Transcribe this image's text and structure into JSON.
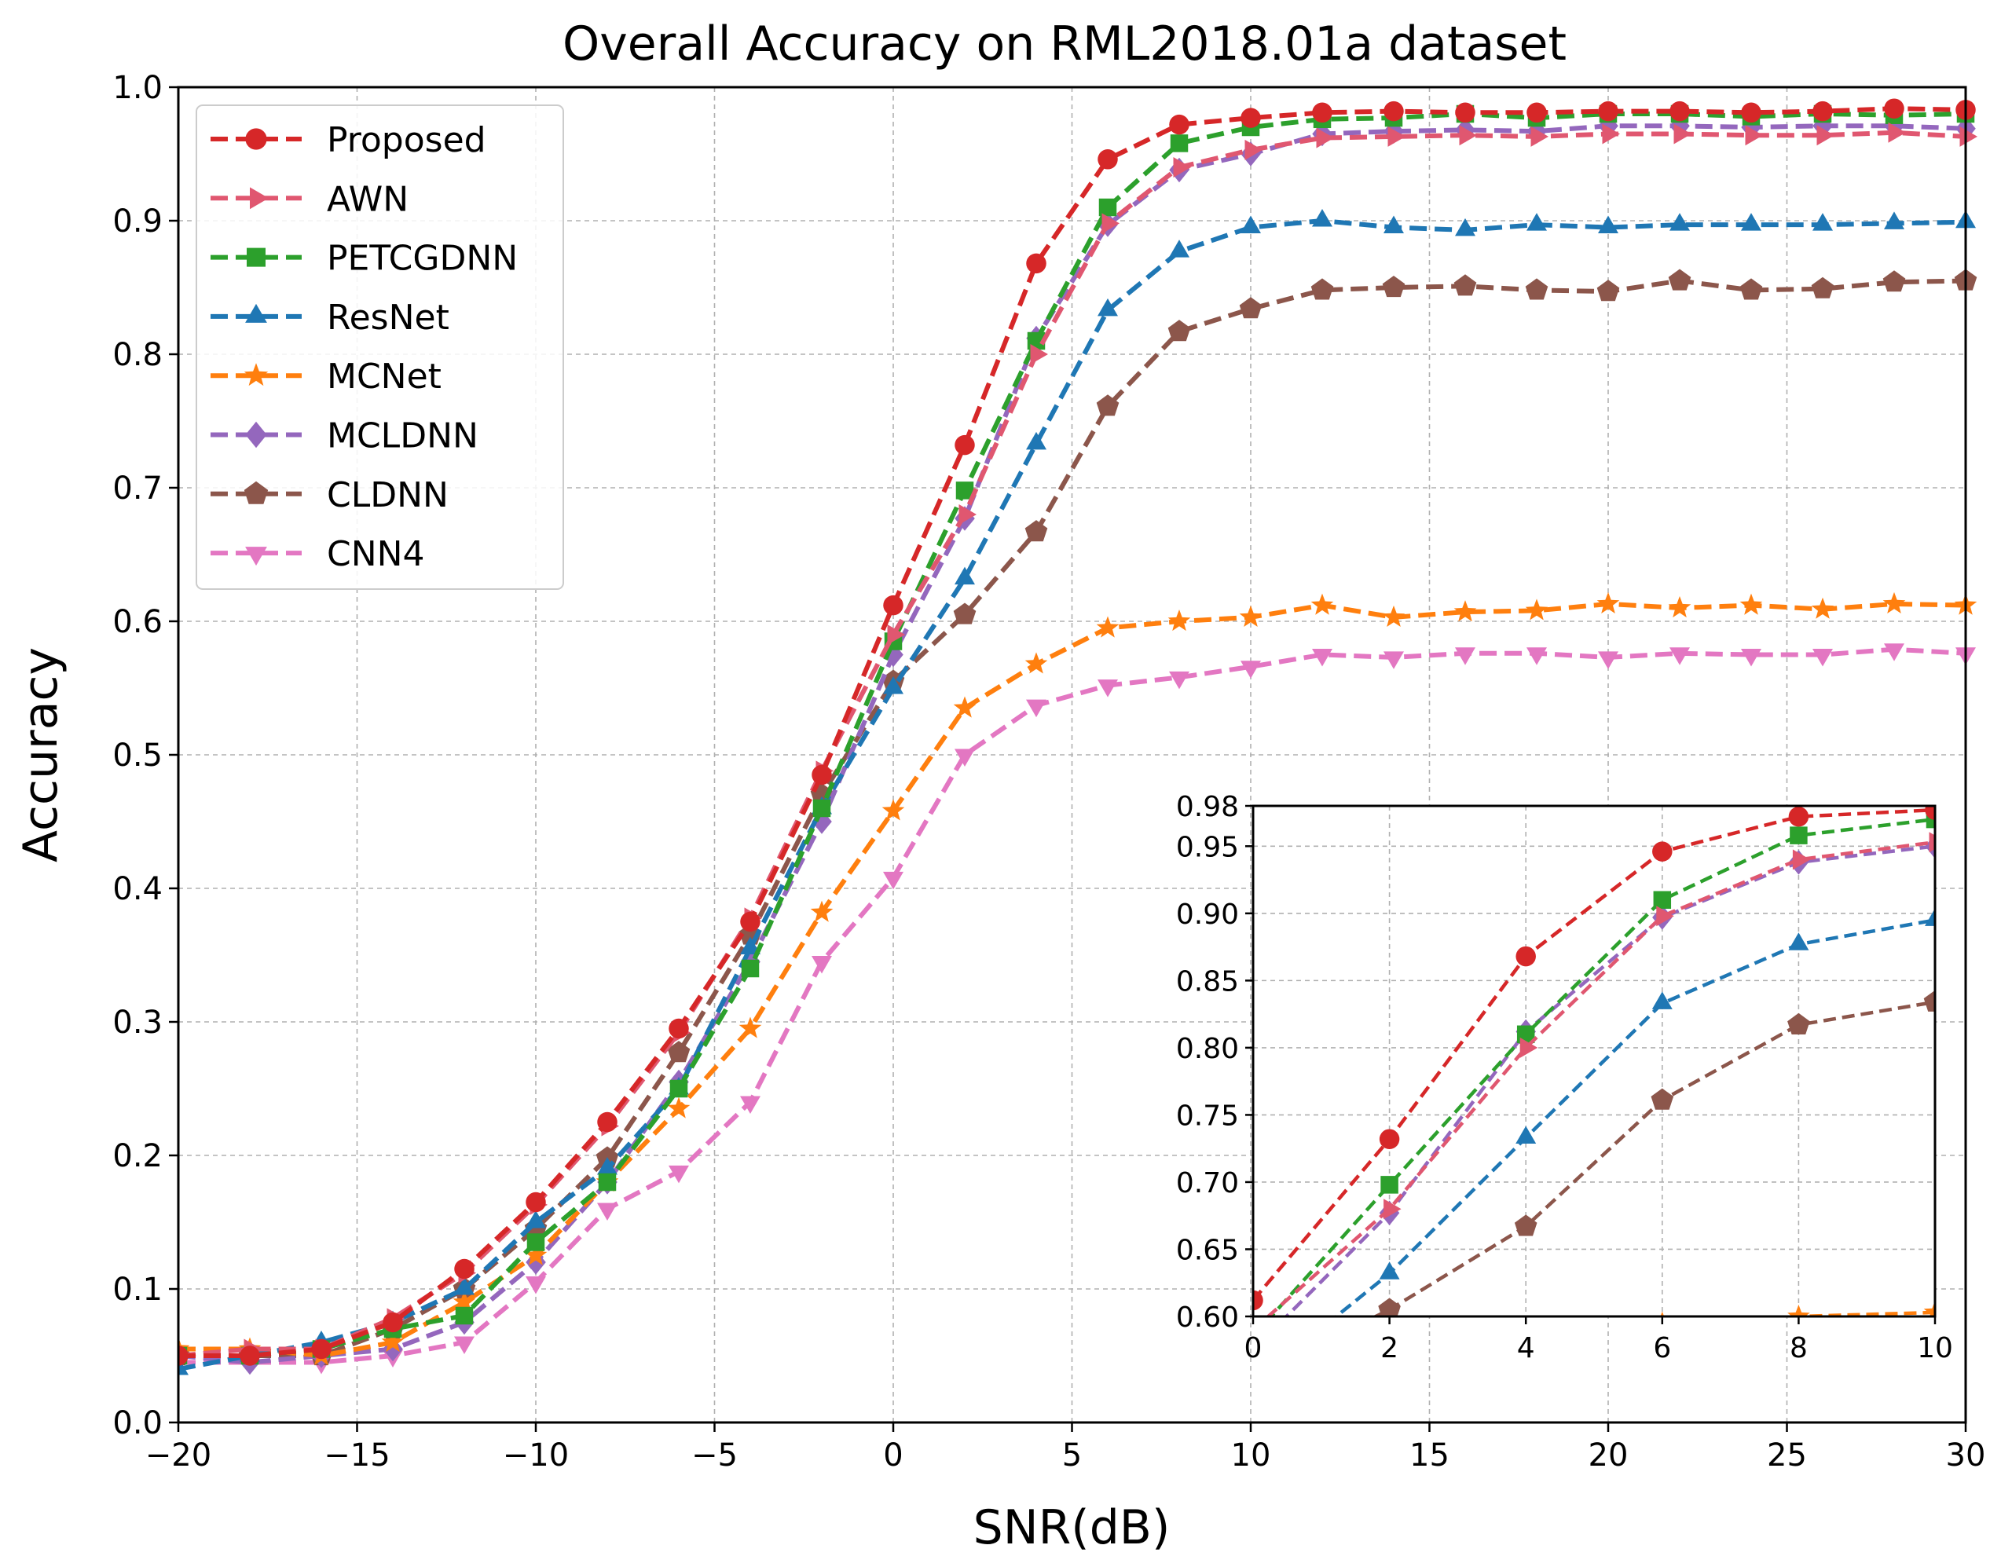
{
  "chart_data": {
    "type": "line",
    "title": "Overall Accuracy on RML2018.01a dataset",
    "xlabel": "SNR(dB)",
    "ylabel": "Accuracy",
    "xlim": [
      -20,
      30
    ],
    "ylim": [
      0.0,
      1.0
    ],
    "grid": true,
    "legend_position": "upper-left",
    "x": [
      -20,
      -18,
      -16,
      -14,
      -12,
      -10,
      -8,
      -6,
      -4,
      -2,
      0,
      2,
      4,
      6,
      8,
      10,
      12,
      14,
      16,
      18,
      20,
      22,
      24,
      26,
      28,
      30
    ],
    "xticks": [
      -20,
      -15,
      -10,
      -5,
      0,
      5,
      10,
      15,
      20,
      25,
      30
    ],
    "xtick_labels": [
      "−20",
      "−15",
      "−10",
      "−5",
      "0",
      "5",
      "10",
      "15",
      "20",
      "25",
      "30"
    ],
    "yticks": [
      0.0,
      0.1,
      0.2,
      0.3,
      0.4,
      0.5,
      0.6,
      0.7,
      0.8,
      0.9,
      1.0
    ],
    "ytick_labels": [
      "0.0",
      "0.1",
      "0.2",
      "0.3",
      "0.4",
      "0.5",
      "0.6",
      "0.7",
      "0.8",
      "0.9",
      "1.0"
    ],
    "series": [
      {
        "name": "Proposed",
        "color": "#d62728",
        "marker": "circle",
        "values": [
          0.05,
          0.05,
          0.055,
          0.075,
          0.115,
          0.165,
          0.225,
          0.295,
          0.375,
          0.485,
          0.612,
          0.732,
          0.868,
          0.946,
          0.972,
          0.977,
          0.981,
          0.982,
          0.981,
          0.981,
          0.982,
          0.982,
          0.981,
          0.982,
          0.984,
          0.983
        ]
      },
      {
        "name": "AWN",
        "color": "#e05770",
        "marker": "triangle-right",
        "values": [
          0.05,
          0.055,
          0.055,
          0.078,
          0.112,
          0.163,
          0.222,
          0.292,
          0.378,
          0.488,
          0.59,
          0.68,
          0.8,
          0.898,
          0.94,
          0.953,
          0.962,
          0.963,
          0.964,
          0.963,
          0.965,
          0.965,
          0.964,
          0.964,
          0.966,
          0.963
        ]
      },
      {
        "name": "PETCGDNN",
        "color": "#2ca02c",
        "marker": "square",
        "values": [
          0.05,
          0.05,
          0.055,
          0.07,
          0.08,
          0.135,
          0.18,
          0.25,
          0.34,
          0.46,
          0.585,
          0.698,
          0.81,
          0.91,
          0.958,
          0.97,
          0.976,
          0.977,
          0.98,
          0.977,
          0.98,
          0.98,
          0.978,
          0.98,
          0.979,
          0.98
        ]
      },
      {
        "name": "ResNet",
        "color": "#1f77b4",
        "marker": "triangle-up",
        "values": [
          0.04,
          0.05,
          0.06,
          0.075,
          0.1,
          0.15,
          0.19,
          0.25,
          0.355,
          0.46,
          0.55,
          0.632,
          0.733,
          0.833,
          0.877,
          0.895,
          0.9,
          0.895,
          0.893,
          0.897,
          0.895,
          0.897,
          0.897,
          0.897,
          0.898,
          0.899
        ]
      },
      {
        "name": "MCNet",
        "color": "#ff7f0e",
        "marker": "star",
        "values": [
          0.055,
          0.055,
          0.05,
          0.06,
          0.09,
          0.125,
          0.18,
          0.235,
          0.295,
          0.382,
          0.458,
          0.535,
          0.568,
          0.595,
          0.6,
          0.603,
          0.612,
          0.603,
          0.607,
          0.608,
          0.613,
          0.61,
          0.612,
          0.609,
          0.613,
          0.612
        ]
      },
      {
        "name": "MCLDNN",
        "color": "#9467bd",
        "marker": "diamond",
        "values": [
          0.05,
          0.045,
          0.05,
          0.055,
          0.075,
          0.12,
          0.18,
          0.255,
          0.345,
          0.45,
          0.575,
          0.677,
          0.812,
          0.897,
          0.938,
          0.95,
          0.965,
          0.967,
          0.968,
          0.967,
          0.971,
          0.971,
          0.97,
          0.971,
          0.971,
          0.969
        ]
      },
      {
        "name": "CLDNN",
        "color": "#8c564b",
        "marker": "pentagon",
        "values": [
          0.05,
          0.05,
          0.05,
          0.07,
          0.1,
          0.145,
          0.198,
          0.277,
          0.365,
          0.47,
          0.555,
          0.605,
          0.667,
          0.761,
          0.817,
          0.834,
          0.848,
          0.85,
          0.851,
          0.848,
          0.847,
          0.855,
          0.848,
          0.849,
          0.854,
          0.855
        ]
      },
      {
        "name": "CNN4",
        "color": "#e377c2",
        "marker": "triangle-down",
        "values": [
          0.045,
          0.045,
          0.045,
          0.05,
          0.06,
          0.105,
          0.16,
          0.188,
          0.24,
          0.345,
          0.408,
          0.5,
          0.537,
          0.552,
          0.558,
          0.566,
          0.575,
          0.573,
          0.576,
          0.576,
          0.573,
          0.576,
          0.575,
          0.575,
          0.579,
          0.576
        ]
      }
    ],
    "inset": {
      "xlim": [
        0,
        10
      ],
      "ylim": [
        0.6,
        0.98
      ],
      "xticks": [
        0,
        2,
        4,
        6,
        8,
        10
      ],
      "xtick_labels": [
        "0",
        "2",
        "4",
        "6",
        "8",
        "10"
      ],
      "yticks": [
        0.6,
        0.65,
        0.7,
        0.75,
        0.8,
        0.85,
        0.9,
        0.95,
        0.98
      ],
      "ytick_labels": [
        "0.60",
        "0.65",
        "0.70",
        "0.75",
        "0.80",
        "0.85",
        "0.90",
        "0.95",
        "0.98"
      ]
    }
  }
}
